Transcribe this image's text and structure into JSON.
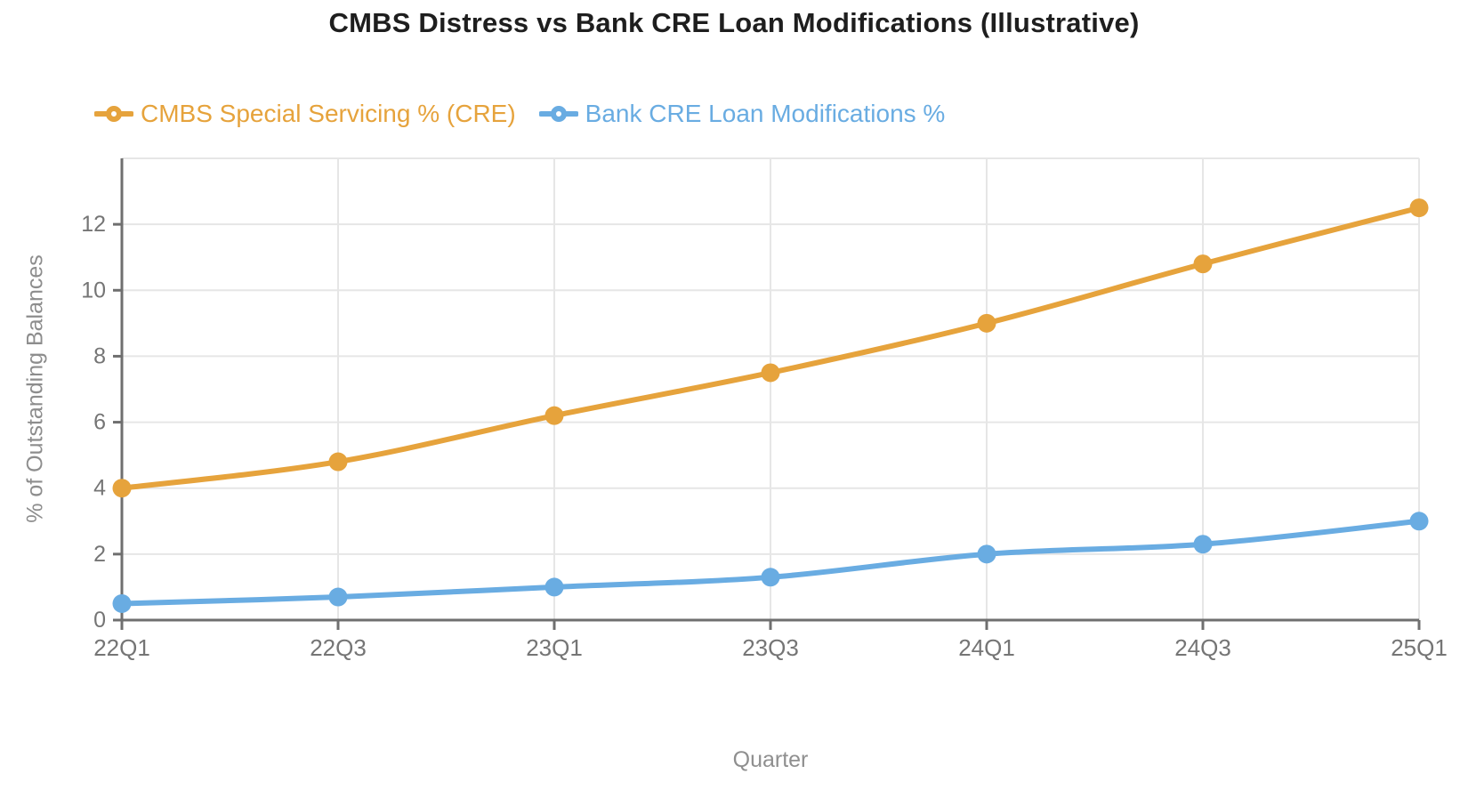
{
  "chart_data": {
    "type": "line",
    "title": "CMBS Distress vs Bank CRE Loan Modifications (Illustrative)",
    "xlabel": "Quarter",
    "ylabel": "% of Outstanding Balances",
    "categories": [
      "22Q1",
      "22Q3",
      "23Q1",
      "23Q3",
      "24Q1",
      "24Q3",
      "25Q1"
    ],
    "series": [
      {
        "name": "CMBS Special Servicing % (CRE)",
        "color": "#E6A33C",
        "values": [
          4.0,
          4.8,
          6.2,
          7.5,
          9.0,
          10.8,
          12.5
        ]
      },
      {
        "name": "Bank CRE Loan Modifications %",
        "color": "#69ACE2",
        "values": [
          0.5,
          0.7,
          1.0,
          1.3,
          2.0,
          2.3,
          3.0
        ]
      }
    ],
    "ylim": [
      0,
      14
    ],
    "yticks": [
      0,
      2,
      4,
      6,
      8,
      10,
      12
    ],
    "grid": true,
    "legend_position": "top-left",
    "style": {
      "axis_color": "#6f6f6f",
      "tick_label_color": "#757575",
      "grid_color": "#e6e6e6",
      "title_color": "#1e1e1e",
      "axis_title_color": "#8d8d8d",
      "background": "#ffffff"
    }
  }
}
